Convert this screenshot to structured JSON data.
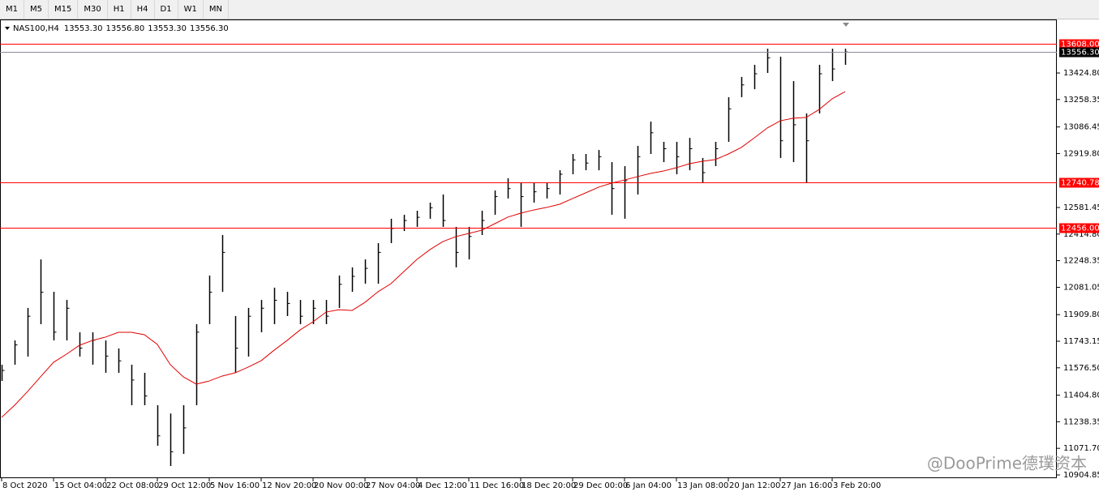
{
  "toolbar": [
    "M1",
    "M5",
    "M15",
    "M30",
    "H1",
    "H4",
    "D1",
    "W1",
    "MN"
  ],
  "header": {
    "symbol": "NAS100,H4",
    "open": "13553.30",
    "high": "13556.80",
    "low": "13553.30",
    "close": "13556.30"
  },
  "watermark": "@DooPrime德璞资本",
  "chart_data": {
    "type": "ohlc",
    "x": [
      0,
      1,
      2,
      3,
      4,
      5,
      6,
      7,
      8,
      9,
      10,
      11,
      12,
      13,
      14,
      15,
      16,
      17,
      18,
      19,
      20,
      21,
      22,
      23,
      24,
      25,
      26,
      27,
      28,
      29,
      30,
      31,
      32,
      33,
      34,
      35,
      36,
      37,
      38,
      39,
      40,
      41,
      42,
      43,
      44,
      45,
      46,
      47,
      48,
      49,
      50,
      51,
      52,
      53,
      54,
      55,
      56,
      57,
      58,
      59,
      60,
      61,
      62,
      63,
      64,
      65
    ],
    "ohlc": {
      "color": "#000000",
      "high": [
        11596,
        11748,
        11952,
        12256,
        12053,
        12002,
        11799,
        11799,
        11748,
        11698,
        11596,
        11545,
        11342,
        11290,
        11342,
        11850,
        12155,
        12409,
        11901,
        11952,
        12002,
        12079,
        12053,
        12002,
        12002,
        12002,
        12155,
        12206,
        12256,
        12358,
        12511,
        12536,
        12561,
        12612,
        12663,
        12460,
        12460,
        12561,
        12688,
        12765,
        12739,
        12739,
        12739,
        12815,
        12917,
        12917,
        12942,
        12866,
        12841,
        12968,
        13120,
        12993,
        12993,
        13018,
        12892,
        12993,
        13273,
        13400,
        13476,
        13577,
        13527,
        13374,
        13171,
        13476,
        13577,
        13577
      ],
      "low": [
        11494,
        11596,
        11647,
        11850,
        11748,
        11748,
        11647,
        11596,
        11545,
        11545,
        11342,
        11342,
        11088,
        10961,
        11037,
        11342,
        11850,
        12053,
        11545,
        11647,
        11799,
        11850,
        11901,
        11850,
        11850,
        11850,
        11952,
        12053,
        12104,
        12104,
        12358,
        12434,
        12460,
        12511,
        12460,
        12206,
        12256,
        12409,
        12536,
        12638,
        12460,
        12612,
        12638,
        12663,
        12790,
        12815,
        12815,
        12536,
        12511,
        12663,
        12917,
        12866,
        12790,
        12815,
        12739,
        12841,
        12993,
        13273,
        13323,
        13425,
        12892,
        12866,
        12739,
        13171,
        13374,
        13476
      ],
      "close": [
        11560,
        11720,
        11900,
        12050,
        11800,
        11950,
        11700,
        11750,
        11650,
        11620,
        11500,
        11400,
        11150,
        11050,
        11200,
        11800,
        12050,
        12300,
        11700,
        11900,
        11950,
        12000,
        11980,
        11900,
        11950,
        11900,
        12100,
        12150,
        12200,
        12300,
        12450,
        12500,
        12520,
        12580,
        12500,
        12300,
        12400,
        12500,
        12650,
        12700,
        12650,
        12680,
        12700,
        12790,
        12880,
        12860,
        12900,
        12700,
        12750,
        12900,
        13050,
        12950,
        12900,
        12950,
        12800,
        12950,
        13200,
        13350,
        13420,
        13520,
        13000,
        13100,
        13000,
        13420,
        13450,
        13556.3
      ]
    },
    "ma": {
      "color": "#e00000",
      "values": [
        11266,
        11342,
        11428,
        11520,
        11611,
        11662,
        11718,
        11748,
        11769,
        11799,
        11799,
        11784,
        11723,
        11596,
        11520,
        11474,
        11494,
        11525,
        11545,
        11581,
        11621,
        11687,
        11748,
        11814,
        11865,
        11926,
        11941,
        11936,
        11987,
        12053,
        12104,
        12180,
        12256,
        12317,
        12368,
        12399,
        12419,
        12439,
        12480,
        12521,
        12546,
        12566,
        12582,
        12602,
        12638,
        12673,
        12709,
        12734,
        12754,
        12775,
        12795,
        12810,
        12831,
        12856,
        12871,
        12882,
        12917,
        12958,
        13018,
        13080,
        13125,
        13141,
        13146,
        13196,
        13263,
        13308
      ]
    },
    "levels": [
      {
        "value": 13608,
        "label": "13608.00",
        "color": "#ff0000"
      },
      {
        "value": 13556.3,
        "label": "13556.30",
        "color": "#000000",
        "line_color": "#8c8ca0"
      },
      {
        "value": 12740.78,
        "label": "12740.78",
        "color": "#ff0000"
      },
      {
        "value": 12456,
        "label": "12456.00",
        "color": "#ff0000"
      }
    ],
    "xlim": [
      -0.125,
      81.3125
    ],
    "ylim": [
      10884.6,
      13760.4
    ],
    "xticks": [
      {
        "value": 0,
        "label": "8 Oct 2020"
      },
      {
        "value": 4,
        "label": "15 Oct 04:00"
      },
      {
        "value": 8,
        "label": "22 Oct 08:00"
      },
      {
        "value": 12,
        "label": "29 Oct 12:00"
      },
      {
        "value": 16,
        "label": "5 Nov 16:00"
      },
      {
        "value": 20,
        "label": "12 Nov 20:00"
      },
      {
        "value": 24,
        "label": "20 Nov 00:00"
      },
      {
        "value": 28,
        "label": "27 Nov 04:00"
      },
      {
        "value": 32,
        "label": "4 Dec 12:00"
      },
      {
        "value": 36,
        "label": "11 Dec 16:00"
      },
      {
        "value": 40,
        "label": "18 Dec 20:00"
      },
      {
        "value": 44,
        "label": "29 Dec 00:00"
      },
      {
        "value": 48,
        "label": "6 Jan 04:00"
      },
      {
        "value": 52,
        "label": "13 Jan 08:00"
      },
      {
        "value": 56,
        "label": "20 Jan 12:00"
      },
      {
        "value": 60,
        "label": "27 Jan 16:00"
      },
      {
        "value": 64,
        "label": "3 Feb 20:00"
      }
    ],
    "yticks": [
      {
        "value": 13424.8,
        "label": "13424.80"
      },
      {
        "value": 13258.35,
        "label": "13258.35"
      },
      {
        "value": 13086.45,
        "label": "13086.45"
      },
      {
        "value": 12919.8,
        "label": "12919.80"
      },
      {
        "value": 12581.45,
        "label": "12581.45"
      },
      {
        "value": 12414.8,
        "label": "12414.80"
      },
      {
        "value": 12248.35,
        "label": "12248.35"
      },
      {
        "value": 12081.05,
        "label": "12081.05"
      },
      {
        "value": 11909.8,
        "label": "11909.80"
      },
      {
        "value": 11743.15,
        "label": "11743.15"
      },
      {
        "value": 11576.5,
        "label": "11576.50"
      },
      {
        "value": 11404.8,
        "label": "11404.80"
      },
      {
        "value": 11238.35,
        "label": "11238.35"
      },
      {
        "value": 11071.7,
        "label": "11071.70"
      },
      {
        "value": 10904.85,
        "label": "10904.85"
      }
    ]
  }
}
